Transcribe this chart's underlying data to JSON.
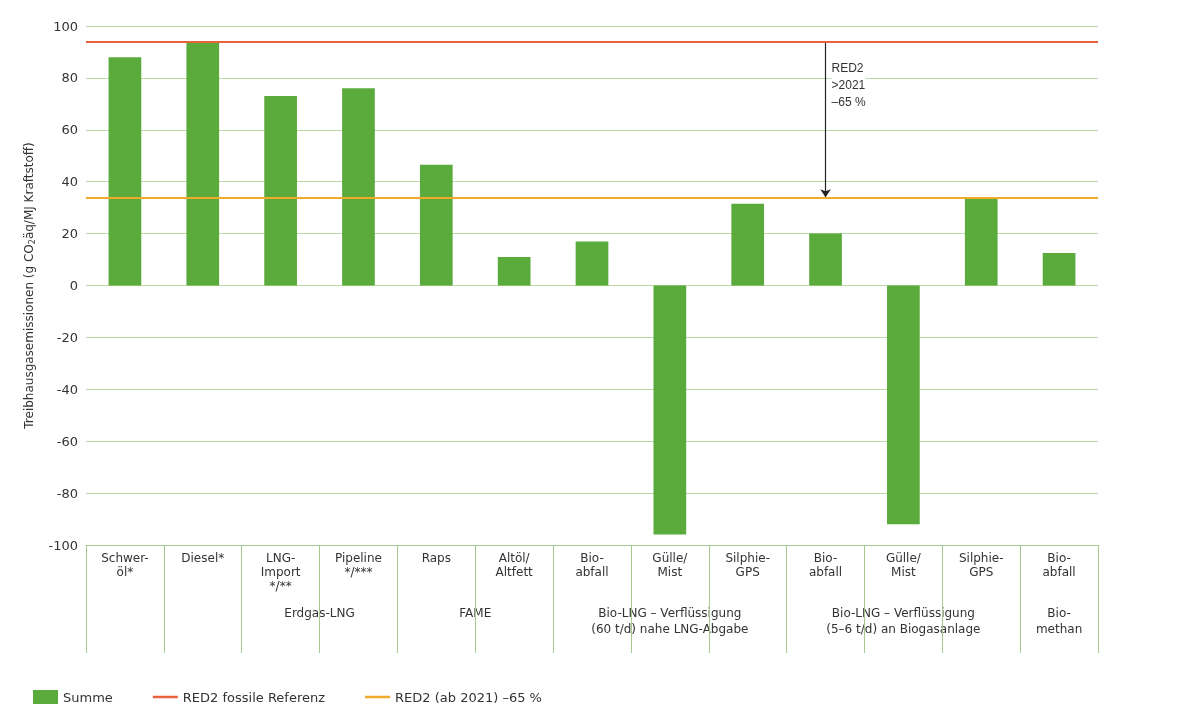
{
  "chart_data": {
    "type": "bar",
    "ylabel": "Treibhausgasemissionen (g CO$_{2}$äq/MJ Kraftstoff)",
    "categories": [
      "Schwer-\nöl*",
      "Diesel*",
      "LNG-\nImport\n*/**",
      "Pipeline\n*/***",
      "Raps",
      "Altöl/\nAltfett",
      "Bio-\nabfall",
      "Gülle/\nMist",
      "Silphie-\nGPS",
      "Bio-\nabfall",
      "Gülle/\nMist",
      "Silphie-\nGPS",
      "Bio-\nabfall"
    ],
    "series": [
      {
        "name": "Summe",
        "color": "#5aab3b",
        "values": [
          88,
          94,
          73,
          76,
          46.5,
          11,
          17,
          -96,
          31.5,
          20,
          -92,
          34,
          12.5
        ]
      }
    ],
    "ylim": [
      -100,
      100
    ],
    "yticks": [
      -100,
      -80,
      -60,
      -40,
      -20,
      0,
      20,
      40,
      60,
      80,
      100
    ],
    "grid": "y",
    "legend": "bottom left",
    "ref_lines": [
      {
        "axis": "y",
        "value": 94,
        "label": "RED2 fossile Referenz",
        "color": "#e8623c"
      },
      {
        "axis": "y",
        "value": 34,
        "label": "RED2 (ab 2021) –65 %",
        "color": "#f0aa2c"
      }
    ],
    "annotations": [
      "RED2\n>2021\n–65 %",
      "Erdgas-LNG",
      "FAME",
      "Bio-LNG – Verflüssigung\n(60 t/d) nahe LNG-Abgabe",
      "Bio-LNG – Verflüssigung\n(5–6 t/d) an Biogasanlage",
      "Bio-\nmethan"
    ]
  }
}
